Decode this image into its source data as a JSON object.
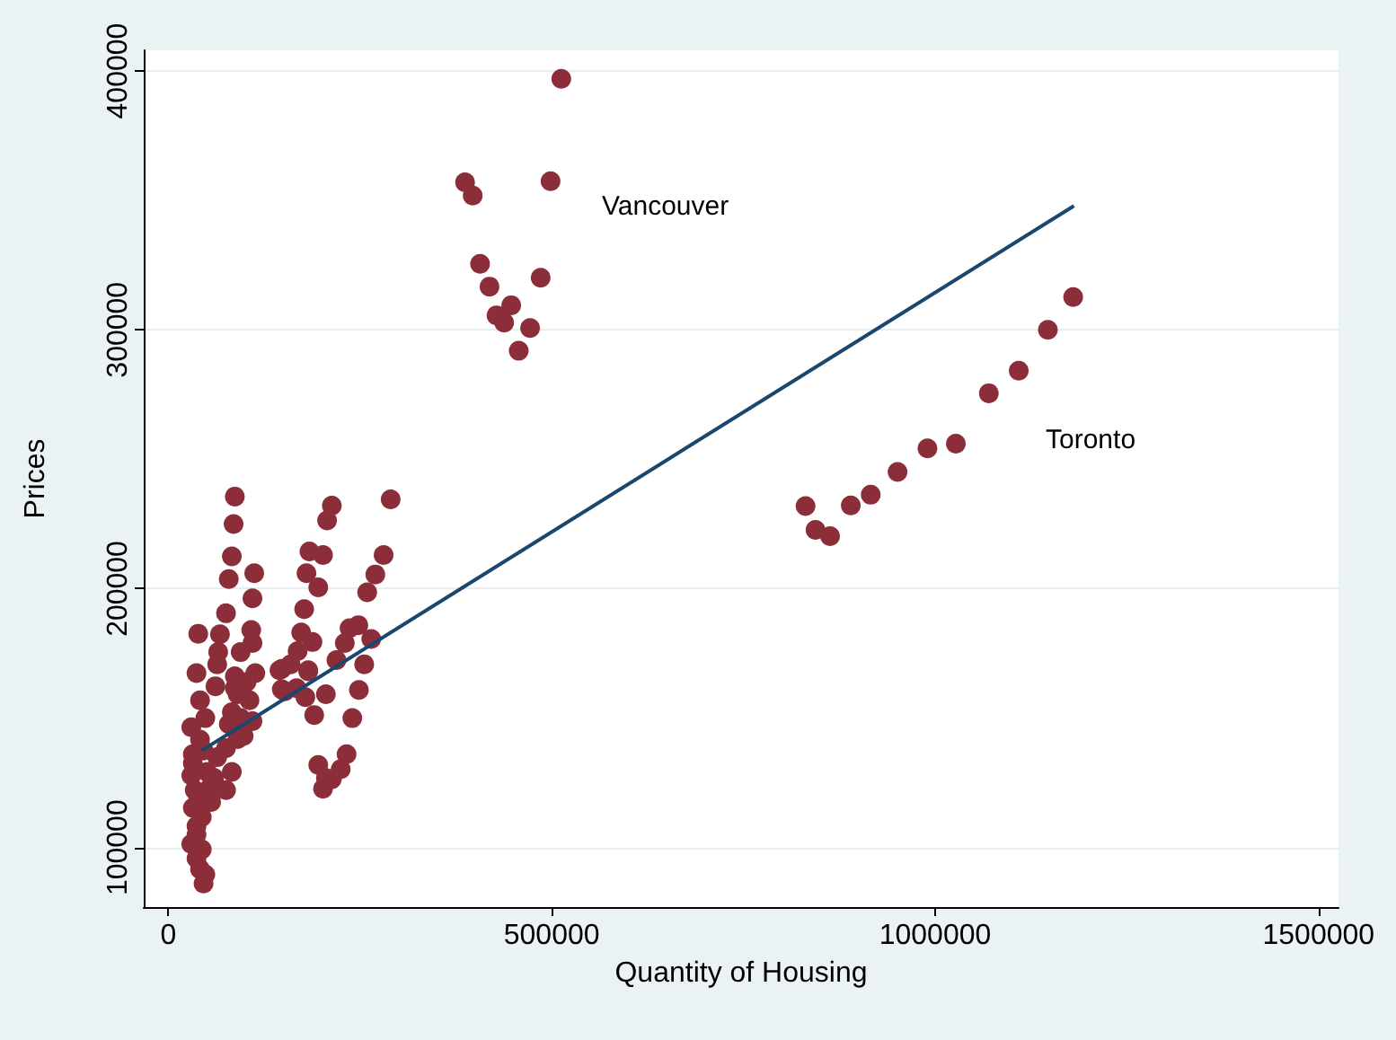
{
  "chart_data": {
    "type": "scatter",
    "xlabel": "Quantity of Housing",
    "ylabel": "Prices",
    "xlim": [
      -32000,
      1526000
    ],
    "ylim": [
      77000,
      408000
    ],
    "xticks": [
      0,
      500000,
      1000000,
      1500000
    ],
    "yticks": [
      100000,
      200000,
      300000,
      400000
    ],
    "grid": "y",
    "marker": "circle",
    "annotations": [
      "Vancouver",
      "Toronto"
    ],
    "series": [
      {
        "color": "#8b2e3a",
        "x": [
          30000,
          32000,
          30000,
          34500,
          32000,
          36800,
          30000,
          36800,
          41400,
          46000,
          32000,
          39100,
          43700,
          36800,
          43700,
          48300,
          39100,
          36800,
          41400,
          48300,
          41400,
          50600,
          55200,
          46000,
          86800,
          85200,
          82900,
          78900,
          112100,
          109800,
          75300,
          67400,
          65100,
          63800,
          108200,
          109800,
          94400,
          113500,
          86800,
          61500,
          90400,
          82900,
          109800,
          98300,
          75300,
          63800,
          82900,
          59800,
          75300,
          55900,
          94400,
          102000,
          86800,
          105900,
          78900,
          90400,
          213300,
          207100,
          184100,
          201800,
          180200,
          195600,
          177200,
          173300,
          188000,
          168700,
          148000,
          159500,
          182500,
          148000,
          167300,
          178800,
          190300,
          205500,
          195600,
          232500,
          224900,
          213300,
          201800,
          205500,
          145000,
          151900,
          182500,
          290000,
          280800,
          270000,
          259400,
          247900,
          236400,
          230200,
          264700,
          219300,
          255500,
          248600,
          240000,
          512500,
          387000,
          397000,
          498500,
          406600,
          418900,
          485600,
          447200,
          428000,
          438000,
          471800,
          457000,
          831000,
          844000,
          863000,
          890000,
          916000,
          951000,
          990000,
          1027000,
          1070000,
          1109000,
          1147000,
          1180000
        ],
        "values": [
          146500,
          136100,
          127800,
          122200,
          115300,
          108300,
          101400,
          95800,
          91700,
          86100,
          132600,
          118700,
          111800,
          104900,
          99300,
          89600,
          182600,
          167400,
          156900,
          150000,
          141700,
          129200,
          123600,
          137500,
          235600,
          225000,
          212500,
          203700,
          206000,
          196300,
          190500,
          182400,
          175500,
          170800,
          184000,
          179000,
          175500,
          167400,
          166200,
          162300,
          159200,
          152300,
          148800,
          143100,
          138400,
          134900,
          129200,
          126900,
          122200,
          117600,
          150000,
          163900,
          161600,
          156900,
          147700,
          141900,
          232100,
          226400,
          214400,
          213000,
          206000,
          200500,
          192100,
          183100,
          179400,
          175900,
          169000,
          170800,
          168100,
          161100,
          161600,
          158100,
          151200,
          159200,
          131900,
          136100,
          130300,
          126400,
          122700,
          126900,
          168500,
          160400,
          168500,
          234500,
          213000,
          205500,
          198600,
          185900,
          184700,
          179000,
          180600,
          172400,
          170800,
          160900,
          150000,
          397000,
          357000,
          351900,
          357400,
          325500,
          316700,
          320100,
          309500,
          305600,
          302800,
          300700,
          291900,
          231900,
          222700,
          220300,
          232200,
          236300,
          245100,
          254200,
          256000,
          275500,
          284200,
          300000,
          312700
        ]
      },
      {
        "type": "line",
        "color": "#1a476f",
        "marker": "none",
        "x": [
          43700,
          1181000
        ],
        "values": [
          137500,
          347900
        ]
      }
    ]
  }
}
